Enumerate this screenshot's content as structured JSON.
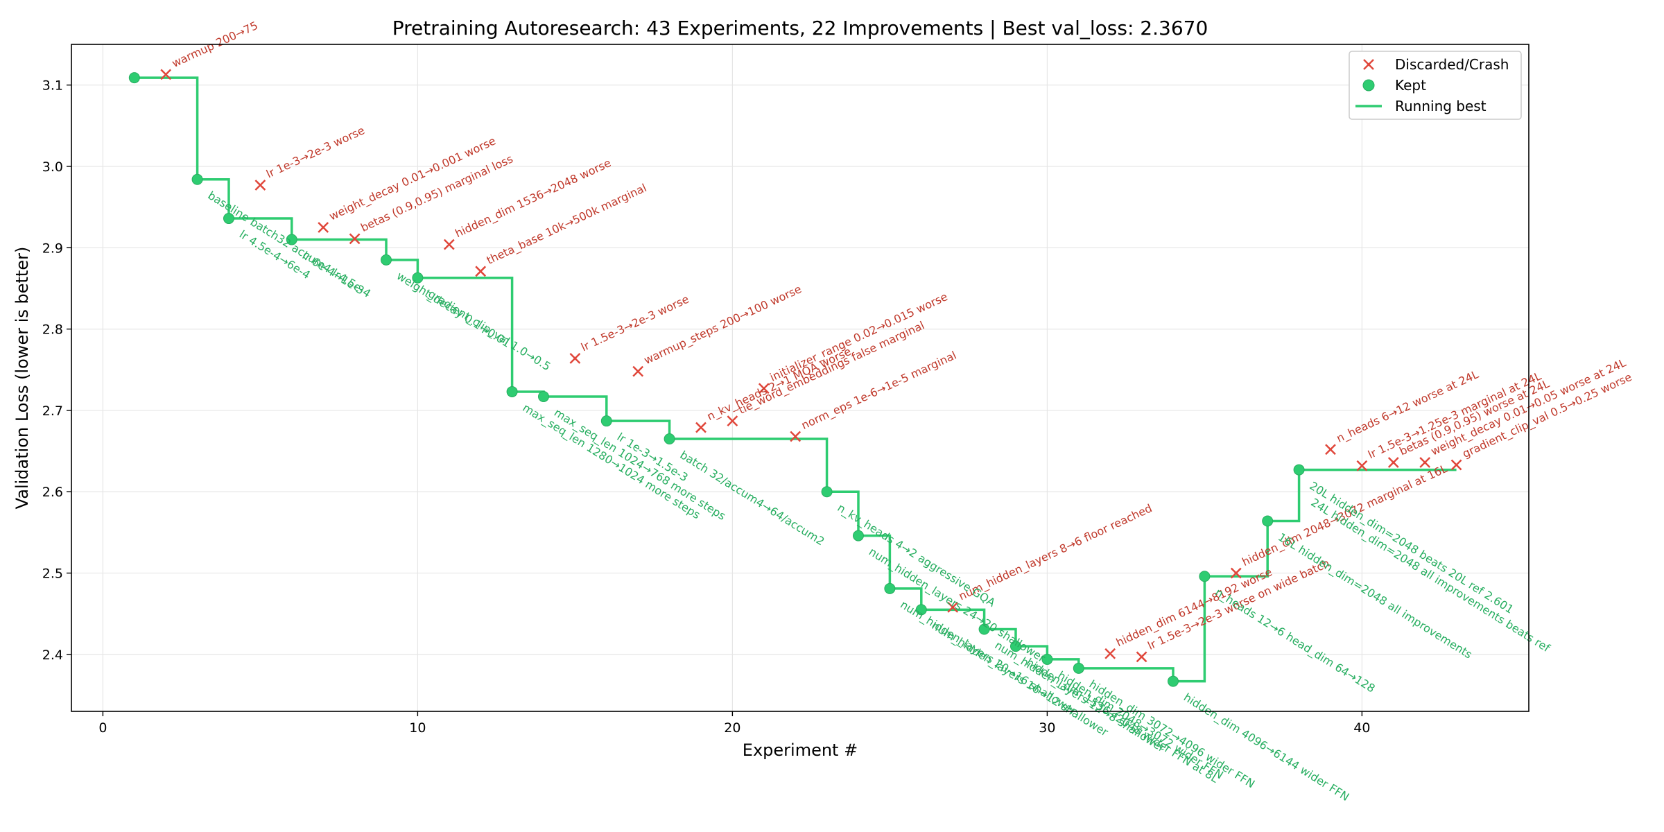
{
  "chart_data": {
    "type": "scatter",
    "title": "Pretraining Autoresearch: 43 Experiments, 22 Improvements | Best val_loss: 2.3670",
    "xlabel": "Experiment #",
    "ylabel": "Validation Loss (lower is better)",
    "xlim": [
      -1,
      45.3
    ],
    "ylim": [
      2.33,
      3.15
    ],
    "xticks": [
      0,
      10,
      20,
      30,
      40
    ],
    "yticks": [
      2.4,
      2.5,
      2.6,
      2.7,
      2.8,
      2.9,
      3.0,
      3.1
    ],
    "grid": true,
    "legend_position": "top-right",
    "colors": {
      "discarded": "#e0463a",
      "kept": "#2ecc71",
      "kept_text": "#27ae60",
      "discarded_text": "#c0392b"
    },
    "series": [
      {
        "name": "Discarded/Crash",
        "marker": "x",
        "points": [
          {
            "x": 2,
            "y": 3.113,
            "label": "warmup 200→75"
          },
          {
            "x": 5,
            "y": 2.977,
            "label": "lr 1e-3→2e-3 worse"
          },
          {
            "x": 7,
            "y": 2.925,
            "label": "weight_decay 0.01→0.001 worse"
          },
          {
            "x": 8,
            "y": 2.911,
            "label": "betas (0.9,0.95) marginal loss"
          },
          {
            "x": 11,
            "y": 2.904,
            "label": "hidden_dim 1536→2048 worse"
          },
          {
            "x": 12,
            "y": 2.871,
            "label": "theta_base 10k→500k marginal"
          },
          {
            "x": 15,
            "y": 2.764,
            "label": "lr 1.5e-3→2e-3 worse"
          },
          {
            "x": 17,
            "y": 2.748,
            "label": "warmup_steps 200→100 worse"
          },
          {
            "x": 19,
            "y": 2.679,
            "label": "n_kv_heads 2→1 MQA worse"
          },
          {
            "x": 20,
            "y": 2.687,
            "label": "tie_word_embeddings false marginal"
          },
          {
            "x": 21,
            "y": 2.727,
            "label": "initializer_range 0.02→0.015 worse"
          },
          {
            "x": 22,
            "y": 2.668,
            "label": "norm_eps 1e-6→1e-5 marginal"
          },
          {
            "x": 27,
            "y": 2.458,
            "label": "num_hidden_layers 8→6 floor reached"
          },
          {
            "x": 32,
            "y": 2.401,
            "label": "hidden_dim 6144→8192 worse"
          },
          {
            "x": 33,
            "y": 2.397,
            "label": "lr 1.5e-3→2e-3 worse on wide batch"
          },
          {
            "x": 36,
            "y": 2.5,
            "label": "hidden_dim 2048→3072 marginal at 16L"
          },
          {
            "x": 39,
            "y": 2.652,
            "label": "n_heads 6→12 worse at 24L"
          },
          {
            "x": 40,
            "y": 2.632,
            "label": "lr 1.5e-3→1.25e-3 marginal at 24L"
          },
          {
            "x": 41,
            "y": 2.636,
            "label": "betas (0.9,0.95) worse at 24L"
          },
          {
            "x": 42,
            "y": 2.636,
            "label": "weight_decay 0.01→0.05 worse at 24L"
          },
          {
            "x": 43,
            "y": 2.633,
            "label": "gradient_clip_val 0.5→0.25 worse"
          }
        ]
      },
      {
        "name": "Kept",
        "marker": "o",
        "points": [
          {
            "x": 1,
            "y": 3.109,
            "label": ""
          },
          {
            "x": 3,
            "y": 2.984,
            "label": "baseline batch32 accum4 lr4.5e-4"
          },
          {
            "x": 4,
            "y": 2.936,
            "label": "lr 4.5e-4→6e-4"
          },
          {
            "x": 6,
            "y": 2.91,
            "label": "lr 6e-4→1e-3"
          },
          {
            "x": 9,
            "y": 2.885,
            "label": "weight_decay 0.1→0.01"
          },
          {
            "x": 10,
            "y": 2.863,
            "label": "gradient_clip_val 1.0→0.5"
          },
          {
            "x": 13,
            "y": 2.723,
            "label": "max_seq_len 1280→1024 more steps"
          },
          {
            "x": 14,
            "y": 2.717,
            "label": "max_seq_len 1024→768 more steps"
          },
          {
            "x": 16,
            "y": 2.687,
            "label": "lr 1e-3→1.5e-3"
          },
          {
            "x": 18,
            "y": 2.665,
            "label": "batch 32/accum4→64/accum2"
          },
          {
            "x": 23,
            "y": 2.6,
            "label": "n_kv_heads 4→2 aggressive GQA"
          },
          {
            "x": 24,
            "y": 2.546,
            "label": "num_hidden_layers 24→20 shallower"
          },
          {
            "x": 25,
            "y": 2.481,
            "label": "num_hidden_layers 20→16 shallower"
          },
          {
            "x": 26,
            "y": 2.455,
            "label": "num_hidden_layers 16→12 shallower"
          },
          {
            "x": 28,
            "y": 2.431,
            "label": "num_hidden_layers 12→8 shallower"
          },
          {
            "x": 29,
            "y": 2.41,
            "label": "hidden_dim 1536→2048 wider FFN at 8L"
          },
          {
            "x": 30,
            "y": 2.394,
            "label": "hidden_dim 2048→3072 wider FFN"
          },
          {
            "x": 31,
            "y": 2.383,
            "label": "hidden_dim 3072→4096 wider FFN"
          },
          {
            "x": 34,
            "y": 2.367,
            "label": "hidden_dim 4096→6144 wider FFN"
          },
          {
            "x": 35,
            "y": 2.496,
            "label": "n_heads 12→6 head_dim 64→128"
          },
          {
            "x": 37,
            "y": 2.564,
            "label": "16L hidden_dim=2048 all improvements"
          },
          {
            "x": 38,
            "y": 2.627,
            "label": "20L hidden_dim=2048 beats 20L ref 2.601"
          }
        ]
      },
      {
        "name": "Running best",
        "marker": "line",
        "step_points": [
          [
            1,
            3.109
          ],
          [
            3,
            2.984
          ],
          [
            4,
            2.936
          ],
          [
            6,
            2.91
          ],
          [
            9,
            2.885
          ],
          [
            10,
            2.863
          ],
          [
            13,
            2.723
          ],
          [
            14,
            2.717
          ],
          [
            16,
            2.687
          ],
          [
            18,
            2.665
          ],
          [
            23,
            2.6
          ],
          [
            24,
            2.546
          ],
          [
            25,
            2.481
          ],
          [
            26,
            2.455
          ],
          [
            28,
            2.431
          ],
          [
            29,
            2.41
          ],
          [
            30,
            2.394
          ],
          [
            31,
            2.383
          ],
          [
            34,
            2.367
          ],
          [
            35,
            2.496
          ],
          [
            37,
            2.564
          ],
          [
            38,
            2.627
          ],
          [
            43,
            2.627
          ]
        ]
      }
    ],
    "extra_annotations": [
      {
        "x": 38,
        "y": 2.627,
        "label": "24L hidden_dim=2048 all improvements beats ref",
        "kind": "kept"
      }
    ]
  }
}
